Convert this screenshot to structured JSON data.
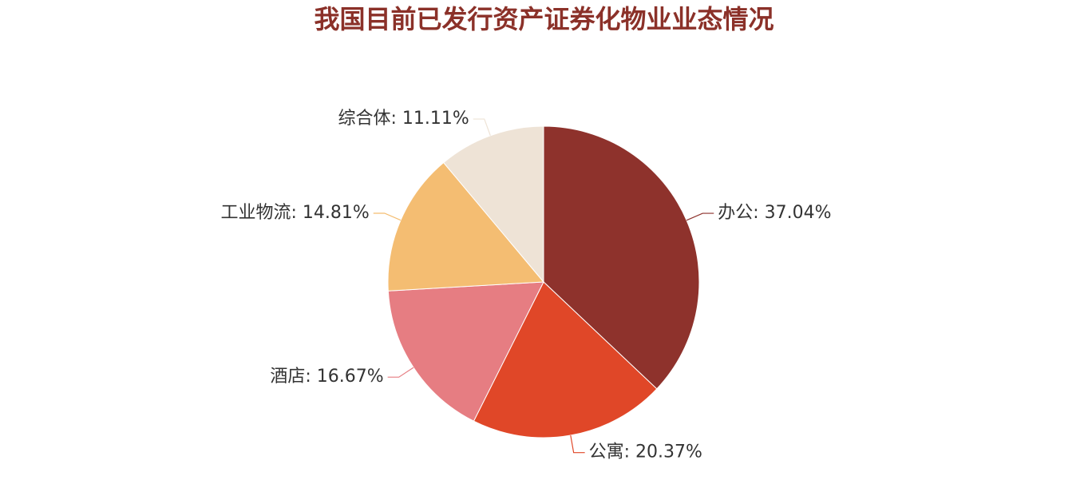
{
  "chart_data": {
    "type": "pie",
    "title": "我国目前已发行资产证券化物业业态情况",
    "slices": [
      {
        "name": "办公",
        "value": 37.04,
        "label": "办公: 37.04%",
        "color": "#8E322C"
      },
      {
        "name": "公寓",
        "value": 20.37,
        "label": "公寓: 20.37%",
        "color": "#E04728"
      },
      {
        "name": "酒店",
        "value": 16.67,
        "label": "酒店: 16.67%",
        "color": "#E67D82"
      },
      {
        "name": "工业物流",
        "value": 14.81,
        "label": "工业物流: 14.81%",
        "color": "#F4BD72"
      },
      {
        "name": "综合体",
        "value": 11.11,
        "label": "综合体: 11.11%",
        "color": "#EEE3D6"
      }
    ],
    "start": "top",
    "direction": "clockwise",
    "legend": "none"
  }
}
